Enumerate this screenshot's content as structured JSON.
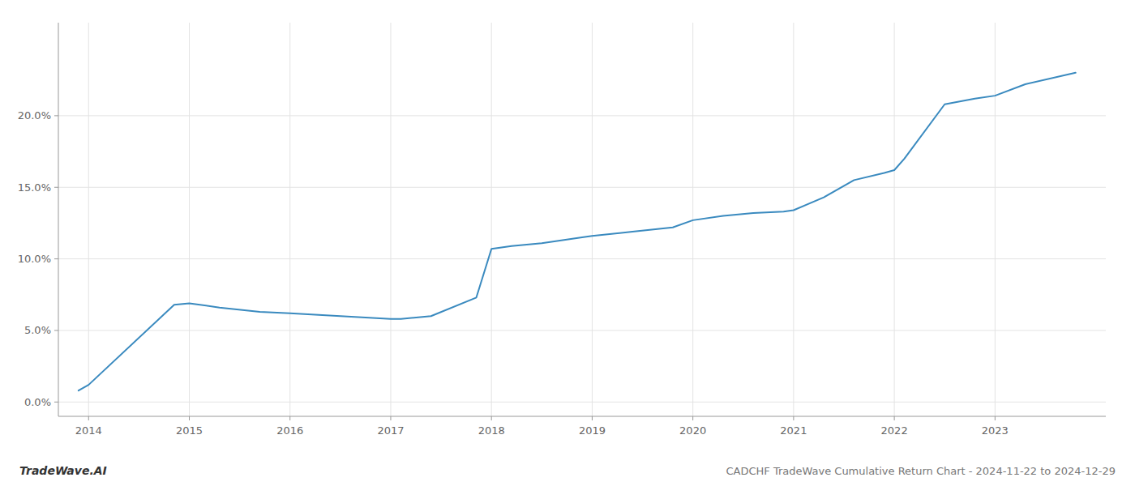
{
  "chart_data": {
    "type": "line",
    "title": "CADCHF TradeWave Cumulative Return Chart - 2024-11-22 to 2024-12-29",
    "annotations": [
      "TradeWave.AI"
    ],
    "x": [
      2013.9,
      2014.0,
      2014.85,
      2015.0,
      2015.3,
      2015.7,
      2016.0,
      2016.5,
      2017.0,
      2017.1,
      2017.4,
      2017.85,
      2018.0,
      2018.2,
      2018.5,
      2018.9,
      2019.0,
      2019.4,
      2019.8,
      2020.0,
      2020.3,
      2020.6,
      2020.9,
      2021.0,
      2021.3,
      2021.6,
      2021.9,
      2022.0,
      2022.1,
      2022.5,
      2022.8,
      2023.0,
      2023.3,
      2023.8
    ],
    "values": [
      0.008,
      0.012,
      0.068,
      0.069,
      0.066,
      0.063,
      0.062,
      0.06,
      0.058,
      0.058,
      0.06,
      0.073,
      0.107,
      0.109,
      0.111,
      0.115,
      0.116,
      0.119,
      0.122,
      0.127,
      0.13,
      0.132,
      0.133,
      0.134,
      0.143,
      0.155,
      0.16,
      0.162,
      0.17,
      0.208,
      0.212,
      0.214,
      0.222,
      0.23
    ],
    "color": "#3a8abf",
    "xlim": [
      2013.7,
      2024.1
    ],
    "xticks": [
      2014,
      2015,
      2016,
      2017,
      2018,
      2019,
      2020,
      2021,
      2022,
      2023
    ],
    "ylim": [
      -0.01,
      0.265
    ],
    "yticks": [
      {
        "value": 0.0,
        "label": "0.0%"
      },
      {
        "value": 0.05,
        "label": "5.0%"
      },
      {
        "value": 0.1,
        "label": "10.0%"
      },
      {
        "value": 0.15,
        "label": "15.0%"
      },
      {
        "value": 0.2,
        "label": "20.0%"
      }
    ],
    "grid": true
  }
}
